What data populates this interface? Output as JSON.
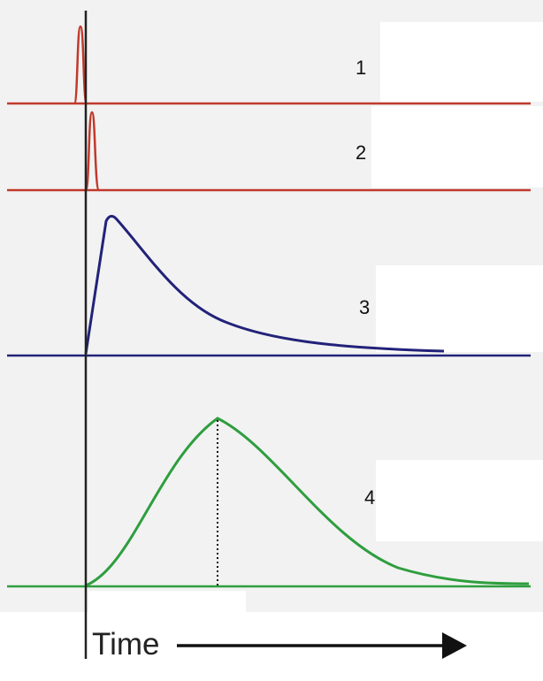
{
  "traces": [
    {
      "label": "1",
      "color": "#c0392b",
      "shape": "narrow-pulse"
    },
    {
      "label": "2",
      "color": "#c0392b",
      "shape": "narrow-pulse-delayed"
    },
    {
      "label": "3",
      "color": "#22227a",
      "shape": "fast-rise-exponential-decay"
    },
    {
      "label": "4",
      "color": "#2e9e3e",
      "shape": "smooth-peak-with-marker"
    }
  ],
  "axis": {
    "time_label": "Time",
    "axis_color": "#222222"
  },
  "colors": {
    "background": "#ffffff",
    "grey_panel": "#f2f2f2",
    "marker_line": "#111111"
  }
}
